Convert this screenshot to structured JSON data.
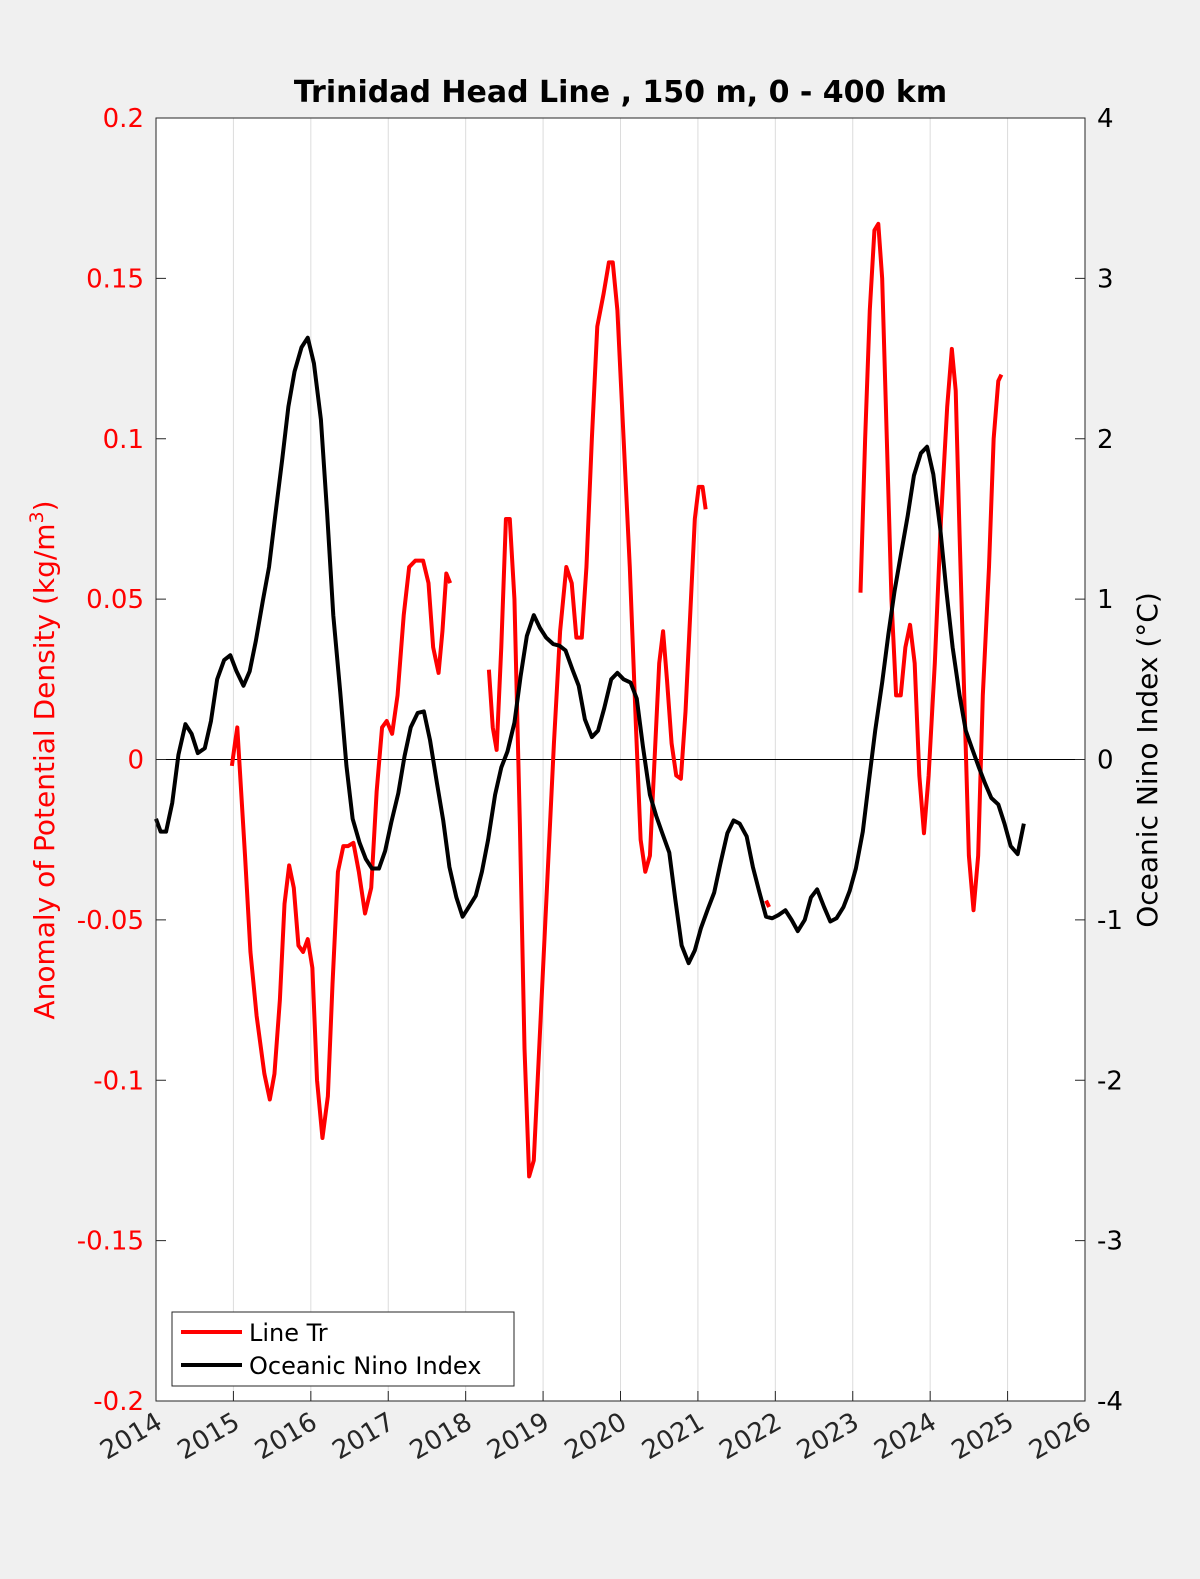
{
  "chart_data": {
    "type": "line",
    "title": "Trinidad Head Line , 150 m, 0 - 400 km",
    "ylabel_left_main": "Anomaly of Potential Density (kg/m",
    "ylabel_left_sup": "3",
    "ylabel_left_close": ")",
    "ylabel_right": "Oceanic Nino Index (°C)",
    "xlim": [
      2014,
      2026
    ],
    "ylim_left": [
      -0.2,
      0.2
    ],
    "ylim_right": [
      -4,
      4
    ],
    "x_ticks": [
      "2014",
      "2015",
      "2016",
      "2017",
      "2018",
      "2019",
      "2020",
      "2021",
      "2022",
      "2023",
      "2024",
      "2025",
      "2026"
    ],
    "y_left_ticks": [
      "0.2",
      "0.15",
      "0.1",
      "0.05",
      "0",
      "-0.05",
      "-0.1",
      "-0.15",
      "-0.2"
    ],
    "y_right_ticks": [
      "4",
      "3",
      "2",
      "1",
      "0",
      "-1",
      "-2",
      "-3",
      "-4"
    ],
    "grid": "vertical",
    "zero_line": true,
    "legend_position": "bottom-left",
    "colors": {
      "line_tr": "#ff0000",
      "oni": "#000000",
      "left_axis": "#ff0000",
      "right_axis": "#000000"
    },
    "series": [
      {
        "name": "Line Tr",
        "axis": "left",
        "color": "#ff0000",
        "segments": [
          [
            [
              2014.98,
              -0.002
            ],
            [
              2015.02,
              0.005
            ],
            [
              2015.05,
              0.01
            ],
            [
              2015.1,
              -0.01
            ],
            [
              2015.15,
              -0.03
            ],
            [
              2015.22,
              -0.06
            ],
            [
              2015.3,
              -0.08
            ],
            [
              2015.4,
              -0.098
            ],
            [
              2015.47,
              -0.106
            ],
            [
              2015.53,
              -0.098
            ],
            [
              2015.6,
              -0.075
            ],
            [
              2015.66,
              -0.045
            ],
            [
              2015.72,
              -0.033
            ],
            [
              2015.78,
              -0.04
            ],
            [
              2015.84,
              -0.058
            ],
            [
              2015.9,
              -0.06
            ],
            [
              2015.96,
              -0.056
            ],
            [
              2016.02,
              -0.065
            ],
            [
              2016.08,
              -0.1
            ],
            [
              2016.15,
              -0.118
            ],
            [
              2016.22,
              -0.105
            ],
            [
              2016.28,
              -0.07
            ],
            [
              2016.35,
              -0.035
            ],
            [
              2016.42,
              -0.027
            ],
            [
              2016.48,
              -0.027
            ],
            [
              2016.55,
              -0.026
            ],
            [
              2016.62,
              -0.035
            ],
            [
              2016.7,
              -0.048
            ],
            [
              2016.78,
              -0.04
            ],
            [
              2016.85,
              -0.01
            ],
            [
              2016.92,
              0.01
            ],
            [
              2016.98,
              0.012
            ],
            [
              2017.05,
              0.008
            ],
            [
              2017.12,
              0.02
            ],
            [
              2017.2,
              0.045
            ],
            [
              2017.27,
              0.06
            ],
            [
              2017.35,
              0.062
            ],
            [
              2017.45,
              0.062
            ],
            [
              2017.52,
              0.055
            ],
            [
              2017.58,
              0.035
            ],
            [
              2017.65,
              0.027
            ],
            [
              2017.7,
              0.04
            ],
            [
              2017.75,
              0.058
            ],
            [
              2017.8,
              0.055
            ]
          ],
          [
            [
              2018.3,
              0.028
            ],
            [
              2018.35,
              0.01
            ],
            [
              2018.4,
              0.003
            ],
            [
              2018.46,
              0.035
            ],
            [
              2018.52,
              0.075
            ],
            [
              2018.57,
              0.075
            ],
            [
              2018.63,
              0.05
            ],
            [
              2018.7,
              -0.02
            ],
            [
              2018.76,
              -0.09
            ],
            [
              2018.82,
              -0.13
            ],
            [
              2018.88,
              -0.125
            ],
            [
              2018.96,
              -0.085
            ],
            [
              2019.05,
              -0.04
            ],
            [
              2019.14,
              0.005
            ],
            [
              2019.22,
              0.04
            ],
            [
              2019.3,
              0.06
            ],
            [
              2019.37,
              0.055
            ],
            [
              2019.43,
              0.038
            ],
            [
              2019.5,
              0.038
            ],
            [
              2019.56,
              0.06
            ],
            [
              2019.63,
              0.1
            ],
            [
              2019.7,
              0.135
            ],
            [
              2019.78,
              0.145
            ],
            [
              2019.85,
              0.155
            ],
            [
              2019.9,
              0.155
            ],
            [
              2019.96,
              0.14
            ],
            [
              2020.04,
              0.1
            ],
            [
              2020.12,
              0.06
            ],
            [
              2020.2,
              0.01
            ],
            [
              2020.26,
              -0.025
            ],
            [
              2020.32,
              -0.035
            ],
            [
              2020.38,
              -0.03
            ],
            [
              2020.44,
              0.0
            ],
            [
              2020.5,
              0.03
            ],
            [
              2020.55,
              0.04
            ],
            [
              2020.6,
              0.025
            ],
            [
              2020.66,
              0.005
            ],
            [
              2020.72,
              -0.005
            ],
            [
              2020.78,
              -0.006
            ],
            [
              2020.84,
              0.015
            ],
            [
              2020.9,
              0.045
            ],
            [
              2020.96,
              0.075
            ],
            [
              2021.01,
              0.085
            ],
            [
              2021.06,
              0.085
            ],
            [
              2021.1,
              0.078
            ]
          ],
          [
            [
              2021.88,
              -0.044
            ],
            [
              2021.92,
              -0.046
            ]
          ],
          [
            [
              2023.1,
              0.052
            ],
            [
              2023.16,
              0.1
            ],
            [
              2023.22,
              0.14
            ],
            [
              2023.28,
              0.165
            ],
            [
              2023.33,
              0.167
            ],
            [
              2023.38,
              0.15
            ],
            [
              2023.44,
              0.1
            ],
            [
              2023.5,
              0.05
            ],
            [
              2023.56,
              0.02
            ],
            [
              2023.62,
              0.02
            ],
            [
              2023.68,
              0.035
            ],
            [
              2023.74,
              0.042
            ],
            [
              2023.8,
              0.03
            ],
            [
              2023.86,
              -0.005
            ],
            [
              2023.92,
              -0.023
            ],
            [
              2023.98,
              -0.005
            ],
            [
              2024.06,
              0.03
            ],
            [
              2024.14,
              0.075
            ],
            [
              2024.22,
              0.11
            ],
            [
              2024.28,
              0.128
            ],
            [
              2024.33,
              0.115
            ],
            [
              2024.38,
              0.07
            ],
            [
              2024.44,
              0.02
            ],
            [
              2024.5,
              -0.03
            ],
            [
              2024.56,
              -0.047
            ],
            [
              2024.62,
              -0.03
            ],
            [
              2024.68,
              0.02
            ],
            [
              2024.76,
              0.06
            ],
            [
              2024.82,
              0.1
            ],
            [
              2024.88,
              0.118
            ],
            [
              2024.92,
              0.12
            ]
          ]
        ]
      },
      {
        "name": "Oceanic Nino Index",
        "axis": "right",
        "color": "#000000",
        "points": [
          [
            2014.0,
            -0.37
          ],
          [
            2014.06,
            -0.45
          ],
          [
            2014.13,
            -0.45
          ],
          [
            2014.21,
            -0.27
          ],
          [
            2014.29,
            0.03
          ],
          [
            2014.38,
            0.22
          ],
          [
            2014.46,
            0.16
          ],
          [
            2014.54,
            0.04
          ],
          [
            2014.63,
            0.07
          ],
          [
            2014.71,
            0.24
          ],
          [
            2014.79,
            0.5
          ],
          [
            2014.88,
            0.62
          ],
          [
            2014.96,
            0.65
          ],
          [
            2015.04,
            0.55
          ],
          [
            2015.13,
            0.46
          ],
          [
            2015.21,
            0.55
          ],
          [
            2015.29,
            0.74
          ],
          [
            2015.38,
            0.99
          ],
          [
            2015.46,
            1.2
          ],
          [
            2015.54,
            1.52
          ],
          [
            2015.63,
            1.87
          ],
          [
            2015.71,
            2.2
          ],
          [
            2015.79,
            2.42
          ],
          [
            2015.88,
            2.57
          ],
          [
            2015.96,
            2.63
          ],
          [
            2016.04,
            2.47
          ],
          [
            2016.13,
            2.12
          ],
          [
            2016.21,
            1.54
          ],
          [
            2016.29,
            0.9
          ],
          [
            2016.38,
            0.42
          ],
          [
            2016.46,
            -0.04
          ],
          [
            2016.54,
            -0.37
          ],
          [
            2016.63,
            -0.52
          ],
          [
            2016.71,
            -0.62
          ],
          [
            2016.79,
            -0.68
          ],
          [
            2016.88,
            -0.68
          ],
          [
            2016.96,
            -0.57
          ],
          [
            2017.04,
            -0.39
          ],
          [
            2017.13,
            -0.21
          ],
          [
            2017.21,
            0.02
          ],
          [
            2017.29,
            0.2
          ],
          [
            2017.38,
            0.29
          ],
          [
            2017.46,
            0.3
          ],
          [
            2017.54,
            0.12
          ],
          [
            2017.63,
            -0.15
          ],
          [
            2017.71,
            -0.38
          ],
          [
            2017.79,
            -0.67
          ],
          [
            2017.88,
            -0.86
          ],
          [
            2017.96,
            -0.98
          ],
          [
            2018.04,
            -0.92
          ],
          [
            2018.13,
            -0.85
          ],
          [
            2018.21,
            -0.7
          ],
          [
            2018.29,
            -0.5
          ],
          [
            2018.38,
            -0.22
          ],
          [
            2018.46,
            -0.05
          ],
          [
            2018.54,
            0.05
          ],
          [
            2018.63,
            0.23
          ],
          [
            2018.71,
            0.52
          ],
          [
            2018.79,
            0.77
          ],
          [
            2018.88,
            0.9
          ],
          [
            2018.96,
            0.82
          ],
          [
            2019.04,
            0.76
          ],
          [
            2019.13,
            0.72
          ],
          [
            2019.21,
            0.71
          ],
          [
            2019.29,
            0.68
          ],
          [
            2019.38,
            0.56
          ],
          [
            2019.46,
            0.46
          ],
          [
            2019.54,
            0.25
          ],
          [
            2019.63,
            0.14
          ],
          [
            2019.71,
            0.18
          ],
          [
            2019.79,
            0.32
          ],
          [
            2019.88,
            0.5
          ],
          [
            2019.96,
            0.54
          ],
          [
            2020.04,
            0.5
          ],
          [
            2020.13,
            0.48
          ],
          [
            2020.21,
            0.38
          ],
          [
            2020.29,
            0.08
          ],
          [
            2020.38,
            -0.22
          ],
          [
            2020.46,
            -0.35
          ],
          [
            2020.54,
            -0.46
          ],
          [
            2020.63,
            -0.58
          ],
          [
            2020.71,
            -0.88
          ],
          [
            2020.79,
            -1.16
          ],
          [
            2020.88,
            -1.27
          ],
          [
            2020.96,
            -1.19
          ],
          [
            2021.04,
            -1.05
          ],
          [
            2021.13,
            -0.93
          ],
          [
            2021.21,
            -0.83
          ],
          [
            2021.29,
            -0.65
          ],
          [
            2021.38,
            -0.46
          ],
          [
            2021.46,
            -0.38
          ],
          [
            2021.54,
            -0.4
          ],
          [
            2021.63,
            -0.48
          ],
          [
            2021.71,
            -0.67
          ],
          [
            2021.79,
            -0.82
          ],
          [
            2021.88,
            -0.98
          ],
          [
            2021.96,
            -0.99
          ],
          [
            2022.04,
            -0.97
          ],
          [
            2022.13,
            -0.94
          ],
          [
            2022.21,
            -1.0
          ],
          [
            2022.29,
            -1.07
          ],
          [
            2022.38,
            -1.0
          ],
          [
            2022.46,
            -0.86
          ],
          [
            2022.54,
            -0.81
          ],
          [
            2022.63,
            -0.92
          ],
          [
            2022.71,
            -1.01
          ],
          [
            2022.79,
            -0.99
          ],
          [
            2022.88,
            -0.92
          ],
          [
            2022.96,
            -0.82
          ],
          [
            2023.04,
            -0.68
          ],
          [
            2023.13,
            -0.45
          ],
          [
            2023.21,
            -0.13
          ],
          [
            2023.29,
            0.18
          ],
          [
            2023.38,
            0.48
          ],
          [
            2023.46,
            0.78
          ],
          [
            2023.54,
            1.05
          ],
          [
            2023.63,
            1.3
          ],
          [
            2023.71,
            1.52
          ],
          [
            2023.79,
            1.77
          ],
          [
            2023.88,
            1.91
          ],
          [
            2023.96,
            1.95
          ],
          [
            2024.04,
            1.78
          ],
          [
            2024.13,
            1.44
          ],
          [
            2024.21,
            1.05
          ],
          [
            2024.29,
            0.7
          ],
          [
            2024.38,
            0.4
          ],
          [
            2024.46,
            0.18
          ],
          [
            2024.54,
            0.07
          ],
          [
            2024.63,
            -0.05
          ],
          [
            2024.71,
            -0.15
          ],
          [
            2024.79,
            -0.24
          ],
          [
            2024.88,
            -0.28
          ],
          [
            2024.96,
            -0.4
          ],
          [
            2025.04,
            -0.54
          ],
          [
            2025.13,
            -0.59
          ],
          [
            2025.21,
            -0.4
          ]
        ]
      }
    ]
  }
}
